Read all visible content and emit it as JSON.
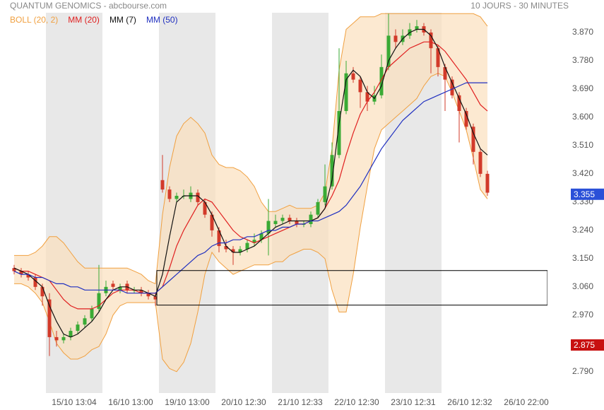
{
  "chart_data": {
    "type": "candlestick",
    "title": "QUANTUM GENOMICS - abcbourse.com",
    "subtitle": "10 JOURS - 30 MINUTES",
    "xlim": [
      0,
      76
    ],
    "ylim": [
      2.722,
      3.933
    ],
    "yticks": [
      {
        "value": 2.79,
        "label": "2.790"
      },
      {
        "value": 2.88,
        "label": "2.880"
      },
      {
        "value": 2.97,
        "label": "2.970"
      },
      {
        "value": 3.06,
        "label": "3.060"
      },
      {
        "value": 3.15,
        "label": "3.150"
      },
      {
        "value": 3.24,
        "label": "3.240"
      },
      {
        "value": 3.33,
        "label": "3.330"
      },
      {
        "value": 3.42,
        "label": "3.420"
      },
      {
        "value": 3.51,
        "label": "3.510"
      },
      {
        "value": 3.6,
        "label": "3.600"
      },
      {
        "value": 3.69,
        "label": "3.690"
      },
      {
        "value": 3.78,
        "label": "3.780"
      },
      {
        "value": 3.87,
        "label": "3.870"
      }
    ],
    "xticks": [
      {
        "value": 9,
        "label": "15/10 13:04"
      },
      {
        "value": 17,
        "label": "16/10 13:00"
      },
      {
        "value": 25,
        "label": "19/10 13:00"
      },
      {
        "value": 33,
        "label": "20/10 12:30"
      },
      {
        "value": 41,
        "label": "21/10 12:33"
      },
      {
        "value": 49,
        "label": "22/10 12:30"
      },
      {
        "value": 57,
        "label": "23/10 12:31"
      },
      {
        "value": 65,
        "label": "26/10 12:32"
      },
      {
        "value": 73,
        "label": "26/10 22:00"
      }
    ],
    "day_bands": [
      [
        5,
        13
      ],
      [
        21,
        29
      ],
      [
        37,
        45
      ],
      [
        53,
        61
      ]
    ],
    "day_band_color": "#e8e8e8",
    "up_color": "#3aaa35",
    "down_color": "#d23a2a",
    "candles": {
      "open": [
        3.12,
        3.11,
        3.1,
        3.09,
        3.06,
        3.02,
        2.9,
        2.89,
        2.9,
        2.92,
        2.94,
        2.96,
        2.99,
        3.04,
        3.07,
        3.05,
        3.07,
        3.05,
        3.05,
        3.04,
        3.03,
        3.4,
        3.37,
        3.34,
        3.35,
        3.34,
        3.36,
        3.33,
        3.29,
        3.24,
        3.19,
        3.18,
        3.17,
        3.18,
        3.2,
        3.21,
        3.23,
        3.26,
        3.27,
        3.28,
        3.27,
        3.26,
        3.26,
        3.29,
        3.33,
        3.38,
        3.48,
        3.62,
        3.74,
        3.72,
        3.68,
        3.65,
        3.67,
        3.76,
        3.86,
        3.84,
        3.86,
        3.88,
        3.89,
        3.87,
        3.82,
        3.76,
        3.72,
        3.67,
        3.62,
        3.57,
        3.49,
        3.42
      ],
      "high": [
        3.13,
        3.12,
        3.11,
        3.1,
        3.07,
        3.04,
        2.92,
        2.91,
        2.93,
        2.95,
        2.97,
        3.0,
        3.13,
        3.08,
        3.08,
        3.07,
        3.08,
        3.06,
        3.06,
        3.05,
        3.04,
        3.48,
        3.38,
        3.36,
        3.37,
        3.38,
        3.37,
        3.34,
        3.3,
        3.25,
        3.21,
        3.19,
        3.19,
        3.21,
        3.23,
        3.24,
        3.34,
        3.29,
        3.29,
        3.29,
        3.28,
        3.27,
        3.3,
        3.34,
        3.45,
        3.52,
        3.82,
        3.78,
        3.76,
        3.73,
        3.7,
        3.7,
        3.8,
        3.93,
        3.88,
        3.88,
        3.9,
        3.91,
        3.9,
        3.88,
        3.83,
        3.77,
        3.73,
        3.68,
        3.63,
        3.58,
        3.5,
        3.43
      ],
      "low": [
        3.1,
        3.09,
        3.08,
        3.05,
        3.0,
        2.84,
        2.87,
        2.88,
        2.89,
        2.91,
        2.93,
        2.95,
        2.98,
        3.03,
        3.05,
        3.04,
        3.04,
        3.04,
        3.03,
        3.02,
        3.0,
        3.36,
        3.33,
        3.33,
        3.34,
        3.33,
        3.32,
        3.28,
        3.22,
        3.17,
        3.17,
        3.13,
        3.16,
        3.17,
        3.19,
        3.2,
        3.16,
        3.25,
        3.26,
        3.26,
        3.25,
        3.25,
        3.25,
        3.28,
        3.32,
        3.37,
        3.47,
        3.61,
        3.71,
        3.63,
        3.62,
        3.64,
        3.66,
        3.75,
        3.82,
        3.83,
        3.85,
        3.87,
        3.86,
        3.74,
        3.73,
        3.62,
        3.66,
        3.52,
        3.56,
        3.45,
        3.41,
        3.35
      ],
      "close": [
        3.11,
        3.1,
        3.09,
        3.06,
        3.03,
        2.9,
        2.89,
        2.9,
        2.92,
        2.94,
        2.96,
        2.99,
        3.04,
        3.06,
        3.06,
        3.06,
        3.05,
        3.05,
        3.04,
        3.03,
        3.02,
        3.37,
        3.34,
        3.35,
        3.35,
        3.36,
        3.33,
        3.29,
        3.24,
        3.19,
        3.18,
        3.17,
        3.18,
        3.2,
        3.21,
        3.23,
        3.27,
        3.27,
        3.28,
        3.27,
        3.26,
        3.26,
        3.29,
        3.33,
        3.38,
        3.48,
        3.62,
        3.74,
        3.72,
        3.68,
        3.65,
        3.67,
        3.76,
        3.86,
        3.84,
        3.86,
        3.88,
        3.89,
        3.87,
        3.82,
        3.76,
        3.72,
        3.67,
        3.62,
        3.57,
        3.49,
        3.42,
        3.36
      ]
    },
    "bollinger": {
      "name": "BOLL (20, 2)",
      "color": "#f0a040",
      "fill": "#fbdfbd",
      "upper": [
        3.16,
        3.16,
        3.16,
        3.17,
        3.19,
        3.22,
        3.22,
        3.2,
        3.17,
        3.14,
        3.12,
        3.12,
        3.12,
        3.12,
        3.12,
        3.12,
        3.12,
        3.11,
        3.1,
        3.08,
        3.07,
        3.29,
        3.44,
        3.54,
        3.58,
        3.6,
        3.58,
        3.55,
        3.48,
        3.45,
        3.44,
        3.44,
        3.43,
        3.41,
        3.38,
        3.33,
        3.3,
        3.3,
        3.31,
        3.32,
        3.31,
        3.31,
        3.31,
        3.32,
        3.36,
        3.5,
        3.75,
        3.88,
        3.9,
        3.92,
        3.92,
        3.92,
        3.93,
        3.93,
        3.93,
        3.93,
        3.93,
        3.93,
        3.93,
        3.93,
        3.93,
        3.93,
        3.93,
        3.93,
        3.93,
        3.93,
        3.92,
        3.89
      ],
      "lower": [
        3.07,
        3.07,
        3.06,
        3.04,
        3.01,
        2.95,
        2.88,
        2.85,
        2.83,
        2.83,
        2.84,
        2.86,
        2.87,
        2.91,
        2.97,
        3.0,
        3.01,
        3.01,
        3.01,
        3.01,
        3.01,
        2.83,
        2.8,
        2.79,
        2.82,
        2.88,
        2.98,
        3.1,
        3.17,
        3.14,
        3.12,
        3.1,
        3.11,
        3.12,
        3.13,
        3.13,
        3.13,
        3.14,
        3.14,
        3.16,
        3.17,
        3.18,
        3.18,
        3.17,
        3.15,
        3.05,
        2.98,
        2.98,
        3.1,
        3.25,
        3.38,
        3.5,
        3.56,
        3.58,
        3.6,
        3.62,
        3.64,
        3.66,
        3.7,
        3.73,
        3.74,
        3.73,
        3.68,
        3.62,
        3.56,
        3.47,
        3.37,
        3.34
      ]
    },
    "series": [
      {
        "name": "MM (20)",
        "color": "#e02020",
        "values": [
          3.12,
          3.11,
          3.11,
          3.1,
          3.09,
          3.08,
          3.05,
          3.02,
          3.0,
          2.99,
          2.99,
          2.99,
          3.0,
          3.02,
          3.04,
          3.05,
          3.05,
          3.05,
          3.04,
          3.04,
          3.04,
          3.06,
          3.12,
          3.19,
          3.24,
          3.28,
          3.32,
          3.34,
          3.33,
          3.3,
          3.27,
          3.24,
          3.22,
          3.21,
          3.2,
          3.21,
          3.22,
          3.23,
          3.24,
          3.25,
          3.26,
          3.26,
          3.27,
          3.28,
          3.31,
          3.35,
          3.4,
          3.48,
          3.55,
          3.61,
          3.65,
          3.68,
          3.72,
          3.76,
          3.78,
          3.8,
          3.82,
          3.83,
          3.84,
          3.84,
          3.83,
          3.81,
          3.78,
          3.75,
          3.72,
          3.68,
          3.64,
          3.62
        ]
      },
      {
        "name": "MM (7)",
        "color": "#111111",
        "values": [
          3.12,
          3.11,
          3.1,
          3.08,
          3.06,
          3.0,
          2.95,
          2.91,
          2.9,
          2.91,
          2.93,
          2.95,
          2.98,
          3.02,
          3.05,
          3.06,
          3.06,
          3.05,
          3.05,
          3.04,
          3.03,
          3.1,
          3.22,
          3.33,
          3.35,
          3.35,
          3.35,
          3.33,
          3.29,
          3.24,
          3.19,
          3.17,
          3.17,
          3.18,
          3.19,
          3.21,
          3.23,
          3.25,
          3.26,
          3.27,
          3.27,
          3.27,
          3.27,
          3.28,
          3.31,
          3.4,
          3.58,
          3.72,
          3.75,
          3.73,
          3.68,
          3.66,
          3.7,
          3.78,
          3.82,
          3.85,
          3.87,
          3.88,
          3.88,
          3.86,
          3.82,
          3.76,
          3.71,
          3.66,
          3.61,
          3.55,
          3.5,
          3.48
        ]
      },
      {
        "name": "MM (50)",
        "color": "#2030c0",
        "values": [
          3.11,
          3.1,
          3.1,
          3.09,
          3.09,
          3.08,
          3.07,
          3.07,
          3.06,
          3.06,
          3.05,
          3.05,
          3.05,
          3.05,
          3.05,
          3.05,
          3.04,
          3.04,
          3.04,
          3.04,
          3.04,
          3.06,
          3.08,
          3.1,
          3.12,
          3.14,
          3.16,
          3.17,
          3.19,
          3.2,
          3.2,
          3.21,
          3.21,
          3.22,
          3.22,
          3.23,
          3.24,
          3.24,
          3.25,
          3.25,
          3.26,
          3.26,
          3.27,
          3.27,
          3.28,
          3.29,
          3.3,
          3.32,
          3.35,
          3.38,
          3.42,
          3.46,
          3.5,
          3.53,
          3.56,
          3.59,
          3.61,
          3.63,
          3.65,
          3.66,
          3.67,
          3.68,
          3.69,
          3.7,
          3.71,
          3.71,
          3.71,
          3.71
        ]
      }
    ],
    "box": {
      "xlim": [
        20.7,
        76
      ],
      "ylim": [
        3.002,
        3.112
      ]
    },
    "price_labels": [
      {
        "value": 3.355,
        "label": "3.355",
        "color": "#2a50d8"
      },
      {
        "value": 2.875,
        "label": "2.875",
        "color": "#c81010"
      }
    ]
  }
}
